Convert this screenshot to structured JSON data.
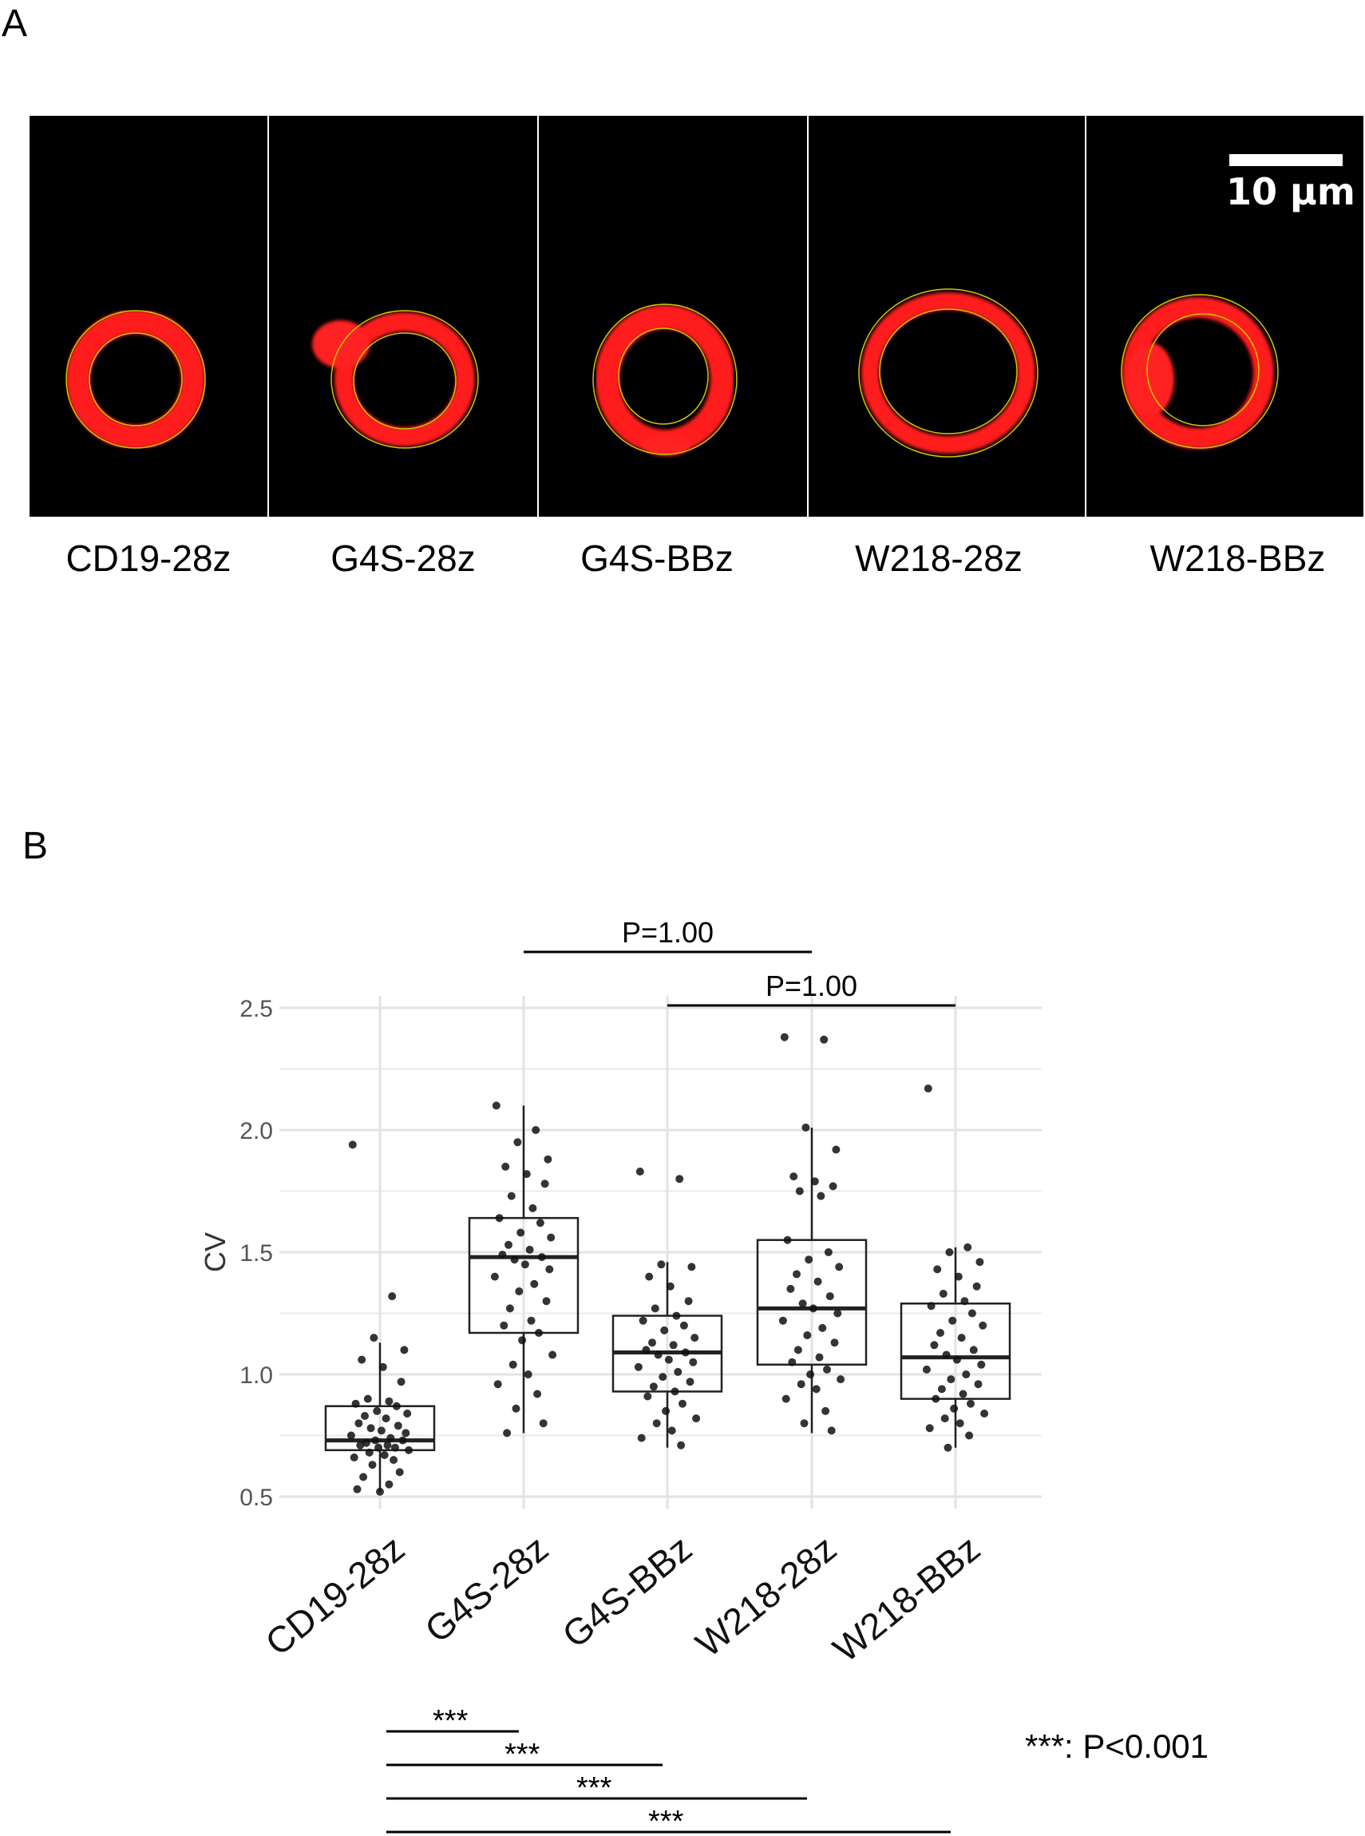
{
  "panel_a": {
    "letter": "A",
    "scale_bar_label": "10 µm",
    "panels": [
      "CD19-28z",
      "G4S-28z",
      "G4S-BBz",
      "W218-28z",
      "W218-BBz"
    ]
  },
  "panel_b": {
    "letter": "B",
    "significance_note": "***: P<0.001",
    "chart_data": {
      "type": "box",
      "categories": [
        "CD19-28z",
        "G4S-28z",
        "G4S-BBz",
        "W218-28z",
        "W218-BBz"
      ],
      "ylabel": "CV",
      "xlabel": "",
      "ylim": [
        0.45,
        2.55
      ],
      "yticks": [
        0.5,
        1.0,
        1.5,
        2.0,
        2.5
      ],
      "ytick_labels": [
        "0.5",
        "1.0",
        "1.5",
        "2.0",
        "2.5"
      ],
      "grid": true,
      "boxes": [
        {
          "category": "CD19-28z",
          "whisker_low": 0.52,
          "q1": 0.69,
          "median": 0.73,
          "q3": 0.87,
          "whisker_high": 1.13
        },
        {
          "category": "G4S-28z",
          "whisker_low": 0.76,
          "q1": 1.17,
          "median": 1.48,
          "q3": 1.64,
          "whisker_high": 2.1
        },
        {
          "category": "G4S-BBz",
          "whisker_low": 0.7,
          "q1": 0.93,
          "median": 1.09,
          "q3": 1.24,
          "whisker_high": 1.46
        },
        {
          "category": "W218-28z",
          "whisker_low": 0.76,
          "q1": 1.04,
          "median": 1.27,
          "q3": 1.55,
          "whisker_high": 2.01
        },
        {
          "category": "W218-BBz",
          "whisker_low": 0.7,
          "q1": 0.9,
          "median": 1.07,
          "q3": 1.29,
          "whisker_high": 1.52
        }
      ],
      "points": [
        [
          1.94,
          1.32,
          1.15,
          1.1,
          1.06,
          1.03,
          0.97,
          0.9,
          0.89,
          0.88,
          0.87,
          0.85,
          0.84,
          0.83,
          0.82,
          0.8,
          0.79,
          0.78,
          0.77,
          0.76,
          0.75,
          0.74,
          0.73,
          0.73,
          0.72,
          0.71,
          0.71,
          0.7,
          0.7,
          0.69,
          0.68,
          0.67,
          0.66,
          0.65,
          0.63,
          0.6,
          0.58,
          0.55,
          0.53,
          0.52
        ],
        [
          2.1,
          2.0,
          1.95,
          1.88,
          1.85,
          1.82,
          1.78,
          1.73,
          1.68,
          1.64,
          1.62,
          1.58,
          1.56,
          1.53,
          1.51,
          1.49,
          1.48,
          1.47,
          1.45,
          1.43,
          1.4,
          1.37,
          1.34,
          1.3,
          1.27,
          1.22,
          1.2,
          1.17,
          1.14,
          1.08,
          1.04,
          1.0,
          0.96,
          0.92,
          0.86,
          0.8,
          0.76
        ],
        [
          1.83,
          1.8,
          1.45,
          1.44,
          1.4,
          1.36,
          1.3,
          1.27,
          1.24,
          1.22,
          1.2,
          1.18,
          1.15,
          1.13,
          1.12,
          1.1,
          1.09,
          1.08,
          1.06,
          1.05,
          1.03,
          1.01,
          0.99,
          0.97,
          0.95,
          0.93,
          0.91,
          0.88,
          0.85,
          0.82,
          0.8,
          0.77,
          0.74,
          0.71
        ],
        [
          2.38,
          2.37,
          2.01,
          1.92,
          1.81,
          1.79,
          1.77,
          1.75,
          1.73,
          1.55,
          1.5,
          1.47,
          1.44,
          1.41,
          1.38,
          1.35,
          1.32,
          1.29,
          1.27,
          1.25,
          1.22,
          1.19,
          1.16,
          1.13,
          1.1,
          1.07,
          1.05,
          1.02,
          1.0,
          0.98,
          0.96,
          0.94,
          0.9,
          0.85,
          0.8,
          0.77
        ],
        [
          2.17,
          1.52,
          1.5,
          1.46,
          1.43,
          1.4,
          1.36,
          1.33,
          1.3,
          1.28,
          1.25,
          1.22,
          1.2,
          1.17,
          1.15,
          1.12,
          1.1,
          1.08,
          1.06,
          1.04,
          1.02,
          1.0,
          0.98,
          0.96,
          0.94,
          0.92,
          0.9,
          0.88,
          0.86,
          0.84,
          0.82,
          0.8,
          0.78,
          0.75,
          0.7
        ]
      ],
      "comparisons_top": [
        {
          "from": "G4S-28z",
          "to": "W218-28z",
          "label": "P=1.00"
        },
        {
          "from": "G4S-BBz",
          "to": "W218-BBz",
          "label": "P=1.00"
        }
      ],
      "comparisons_bottom": [
        {
          "from": "CD19-28z",
          "to": "G4S-28z",
          "label": "***"
        },
        {
          "from": "CD19-28z",
          "to": "G4S-BBz",
          "label": "***"
        },
        {
          "from": "CD19-28z",
          "to": "W218-28z",
          "label": "***"
        },
        {
          "from": "CD19-28z",
          "to": "W218-BBz",
          "label": "***"
        }
      ]
    }
  }
}
